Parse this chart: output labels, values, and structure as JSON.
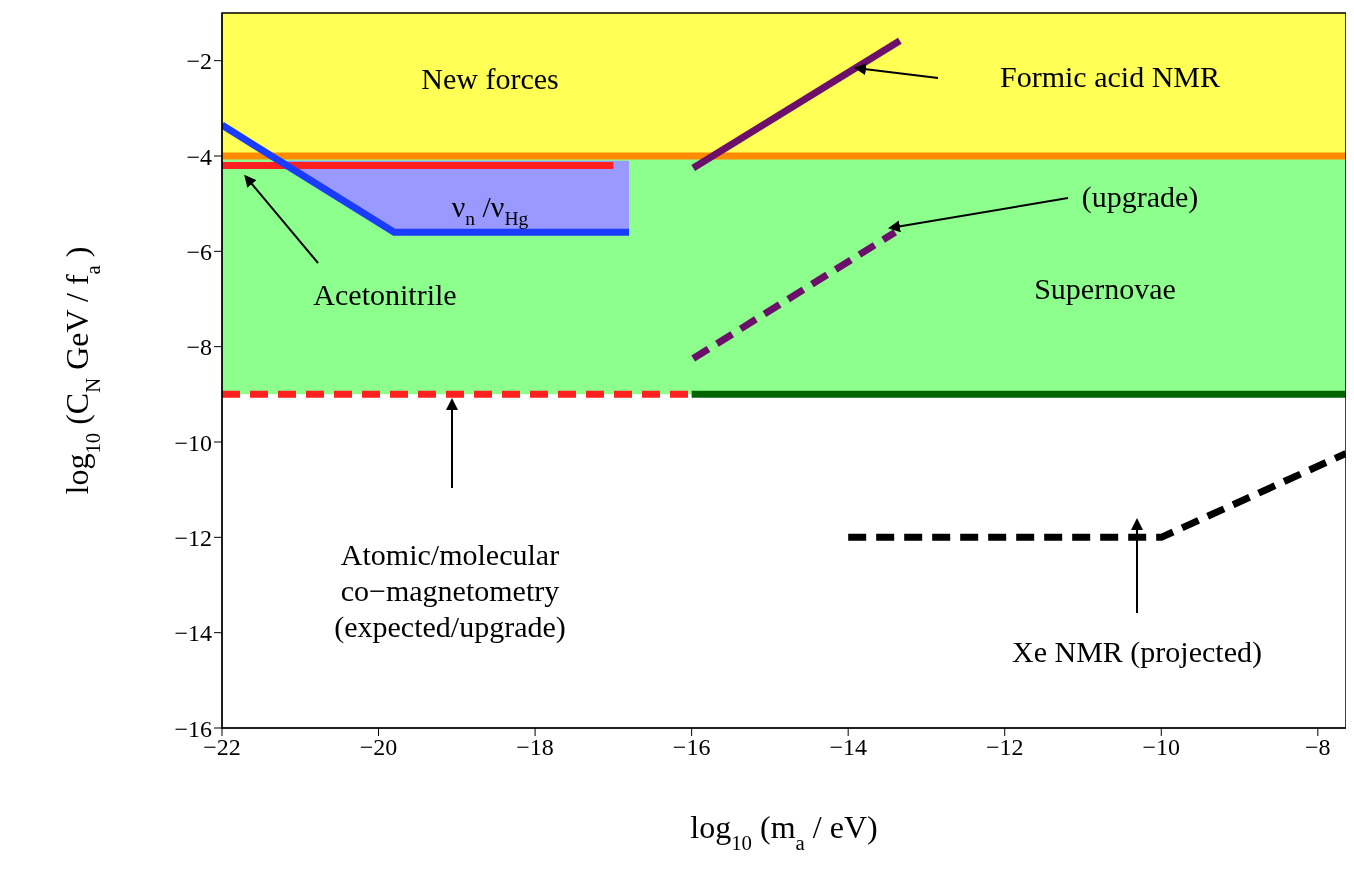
{
  "chart_data": {
    "type": "line",
    "xlabel": "log$_{10}$(m$_{a}$ / eV)",
    "ylabel": "log$_{10}$(C$_{N}$ GeV / f$_{a}$)",
    "xlim": [
      -22,
      -7.64
    ],
    "ylim": [
      -16,
      -1
    ],
    "xticks": [
      -22,
      -20,
      -18,
      -16,
      -14,
      -12,
      -10,
      -8
    ],
    "yticks": [
      -16,
      -14,
      -12,
      -10,
      -8,
      -6,
      -4,
      -2
    ],
    "marker": "none",
    "bands": [
      {
        "axis": "y",
        "from": -4,
        "to": -1,
        "color": "#ffff55"
      },
      {
        "axis": "y",
        "from": -9,
        "to": -4,
        "color": "#8cff8c"
      }
    ],
    "series": [
      {
        "color": "#ff8c00",
        "x": [
          -22,
          -7.64
        ],
        "values": [
          -4,
          -4
        ],
        "line_style": "solid"
      },
      {
        "color": "#ff2020",
        "x": [
          -22,
          -17
        ],
        "values": [
          -4.2,
          -4.2
        ],
        "line_style": "solid"
      },
      {
        "color": "#1a3cff",
        "x": [
          -22,
          -21.27,
          -19.8,
          -16.8
        ],
        "values": [
          -3.35,
          -4.1,
          -5.6,
          -5.6
        ],
        "lower": [
          null,
          -4.1,
          -5.6,
          -5.6
        ],
        "upper": [
          null,
          -4.1,
          -4.1,
          -4.1
        ],
        "line_style": "solid"
      },
      {
        "color": "#6b0f6b",
        "x": [
          -15.98,
          -13.34
        ],
        "values": [
          -4.25,
          -1.58
        ],
        "line_style": "solid"
      },
      {
        "color": "#6b0f6b",
        "x": [
          -15.98,
          -13.4
        ],
        "values": [
          -8.25,
          -5.6
        ],
        "line_style": "dashed"
      },
      {
        "color": "#ff2020",
        "x": [
          -22,
          -16
        ],
        "values": [
          -9,
          -9
        ],
        "line_style": "dashed"
      },
      {
        "color": "#006400",
        "x": [
          -16,
          -7.64
        ],
        "values": [
          -9,
          -9
        ],
        "line_style": "solid"
      },
      {
        "color": "#000000",
        "x": [
          -14,
          -10,
          -7.64
        ],
        "values": [
          -12,
          -12,
          -10.24
        ],
        "line_style": "dashed"
      }
    ],
    "annotations": [
      "New forces",
      "Formic acid NMR",
      "(upgrade)",
      "ν$_{n}$/ν$_{Hg}$",
      {
        "text": "Acetonitrile",
        "x": -21.7,
        "y": -4.3
      },
      "Supernovae",
      "Atomic/molecular\nco−magnetometry\n(expected/upgrade)",
      "Xe NMR (projected)"
    ]
  }
}
